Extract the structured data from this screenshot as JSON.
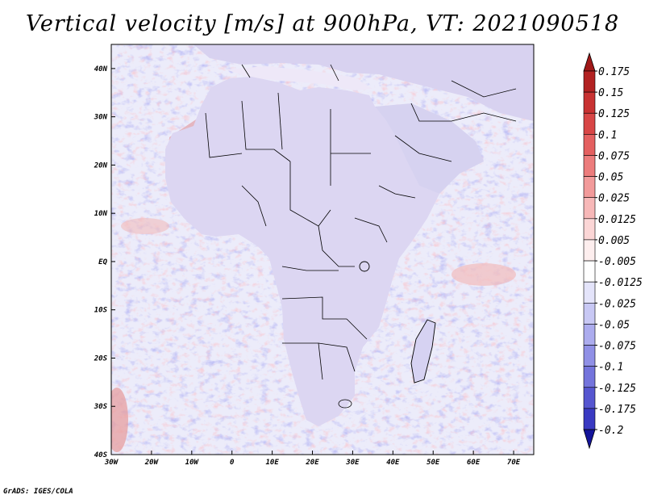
{
  "title": "Vertical velocity [m/s] at 900hPa, VT: 2021090518",
  "credit": "GrADS: IGES/COLA",
  "map": {
    "lon_range": [
      -30,
      75
    ],
    "lat_range": [
      -40,
      45
    ],
    "lon_ticks": [
      {
        "value": -30,
        "label": "30W"
      },
      {
        "value": -20,
        "label": "20W"
      },
      {
        "value": -10,
        "label": "10W"
      },
      {
        "value": 0,
        "label": "0"
      },
      {
        "value": 10,
        "label": "10E"
      },
      {
        "value": 20,
        "label": "20E"
      },
      {
        "value": 30,
        "label": "30E"
      },
      {
        "value": 40,
        "label": "40E"
      },
      {
        "value": 50,
        "label": "50E"
      },
      {
        "value": 60,
        "label": "60E"
      },
      {
        "value": 70,
        "label": "70E"
      }
    ],
    "lat_ticks": [
      {
        "value": 40,
        "label": "40N"
      },
      {
        "value": 30,
        "label": "30N"
      },
      {
        "value": 20,
        "label": "20N"
      },
      {
        "value": 10,
        "label": "10N"
      },
      {
        "value": 0,
        "label": "EQ"
      },
      {
        "value": -10,
        "label": "10S"
      },
      {
        "value": -20,
        "label": "20S"
      },
      {
        "value": -30,
        "label": "30S"
      },
      {
        "value": -40,
        "label": "40S"
      }
    ]
  },
  "colorbar": {
    "levels": [
      {
        "label": "0.175",
        "color": "#b22222"
      },
      {
        "label": "0.15",
        "color": "#c83232"
      },
      {
        "label": "0.125",
        "color": "#d84646"
      },
      {
        "label": "0.1",
        "color": "#e46060"
      },
      {
        "label": "0.075",
        "color": "#ec7c7c"
      },
      {
        "label": "0.05",
        "color": "#f29a9a"
      },
      {
        "label": "0.025",
        "color": "#f7b8b8"
      },
      {
        "label": "0.0125",
        "color": "#fbd6d6"
      },
      {
        "label": "0.005",
        "color": "#fdeeee"
      },
      {
        "label": "-0.005",
        "color": "#ffffff"
      },
      {
        "label": "-0.0125",
        "color": "#e4e4fa"
      },
      {
        "label": "-0.025",
        "color": "#c8c8f4"
      },
      {
        "label": "-0.05",
        "color": "#acacee"
      },
      {
        "label": "-0.075",
        "color": "#9090e6"
      },
      {
        "label": "-0.1",
        "color": "#7474dc"
      },
      {
        "label": "-0.125",
        "color": "#5656d0"
      },
      {
        "label": "-0.175",
        "color": "#3a3ac2"
      },
      {
        "label": "-0.2",
        "color": "#2222b0"
      }
    ],
    "top_color": "#a01818",
    "bottom_color": "#14149a"
  },
  "colors": {
    "ocean": "#e7e7f8",
    "land": "#dcdcf4",
    "sahara_red": "#d86a6a",
    "south_white": "#ffffff"
  }
}
